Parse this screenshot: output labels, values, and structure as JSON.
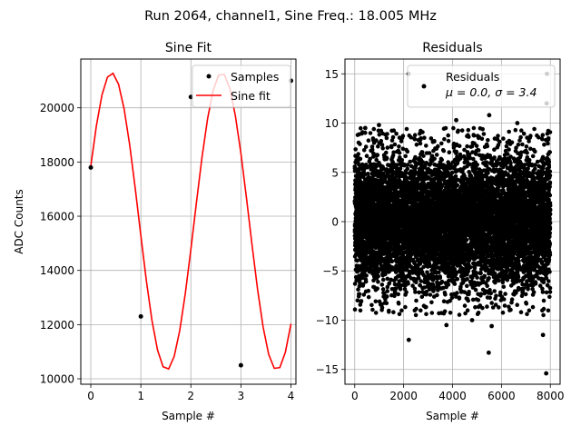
{
  "figure": {
    "suptitle": "Run 2064, channel1, Sine Freq.: 18.005 MHz"
  },
  "chart_data": [
    {
      "type": "line",
      "title": "Sine Fit",
      "xlabel": "Sample #",
      "ylabel": "ADC Counts",
      "xlim": [
        -0.2,
        4.1
      ],
      "ylim": [
        9800,
        21800
      ],
      "xticks": [
        0,
        1,
        2,
        3,
        4
      ],
      "yticks": [
        10000,
        12000,
        14000,
        16000,
        18000,
        20000
      ],
      "xtick_labels": [
        "0",
        "1",
        "2",
        "3",
        "4"
      ],
      "ytick_labels": [
        "10000",
        "12000",
        "14000",
        "16000",
        "18000",
        "20000"
      ],
      "grid": true,
      "legend_loc": "upper right",
      "samples": {
        "name": "Samples",
        "color": "#000000",
        "x": [
          0,
          1,
          2,
          3,
          4
        ],
        "y": [
          17800,
          12300,
          20400,
          10500,
          21000
        ]
      },
      "fit": {
        "name": "Sine fit",
        "color": "#ff0000",
        "amplitude": 5480,
        "offset": 15810,
        "period": 2.2,
        "phase": 0.381,
        "x_start": 0,
        "x_end": 4,
        "points": 36
      }
    },
    {
      "type": "scatter",
      "title": "Residuals",
      "xlabel": "Sample #",
      "ylabel": "",
      "xlim": [
        -400,
        8400
      ],
      "ylim": [
        -16.5,
        16.5
      ],
      "xticks": [
        0,
        2000,
        4000,
        6000,
        8000
      ],
      "yticks": [
        -15,
        -10,
        -5,
        0,
        5,
        10,
        15
      ],
      "xtick_labels": [
        "0",
        "2000",
        "4000",
        "6000",
        "8000"
      ],
      "ytick_labels": [
        "−15",
        "−10",
        "−5",
        "0",
        "5",
        "10",
        "15"
      ],
      "grid": true,
      "legend_loc": "upper right",
      "legend": {
        "label": "Residuals",
        "stats": "μ = 0.0, σ = 3.4"
      },
      "series": {
        "name": "Residuals",
        "color": "#000000",
        "n": 8000,
        "mean": 0.0,
        "std": 3.4,
        "outliers": [
          [
            2210,
            -12.0
          ],
          [
            5480,
            -13.3
          ],
          [
            7830,
            -15.4
          ],
          [
            2200,
            15.0
          ],
          [
            7860,
            15.0
          ],
          [
            5500,
            10.8
          ],
          [
            4150,
            10.3
          ],
          [
            6650,
            10.0
          ],
          [
            7850,
            12.0
          ],
          [
            430,
            9.5
          ],
          [
            990,
            9.8
          ],
          [
            3750,
            -10.5
          ],
          [
            4800,
            -10.0
          ],
          [
            5600,
            -10.6
          ],
          [
            7700,
            -11.5
          ]
        ]
      }
    }
  ]
}
